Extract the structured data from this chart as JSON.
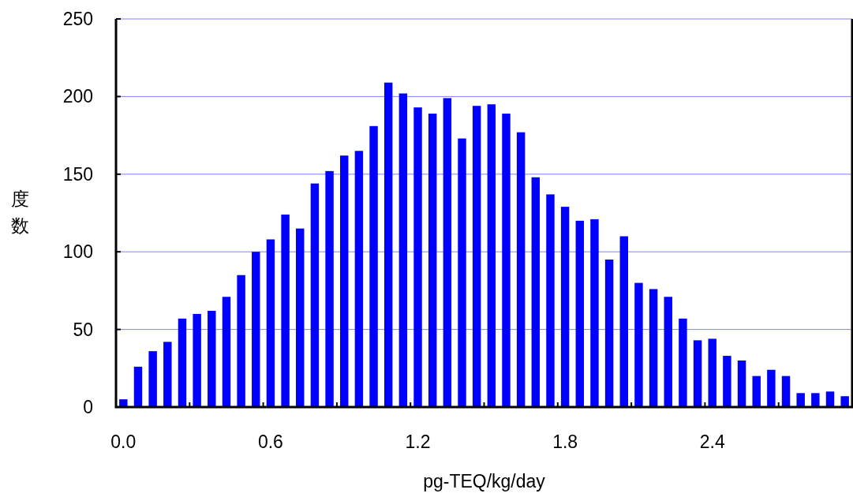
{
  "chart_data": {
    "type": "bar",
    "xlabel": "pg-TEQ/kg/day",
    "ylabel": "度数",
    "categories": [
      "0.0",
      null,
      null,
      null,
      null,
      null,
      null,
      null,
      null,
      null,
      "0.6",
      null,
      null,
      null,
      null,
      null,
      null,
      null,
      null,
      null,
      "1.2",
      null,
      null,
      null,
      null,
      null,
      null,
      null,
      null,
      null,
      "1.8",
      null,
      null,
      null,
      null,
      null,
      null,
      null,
      null,
      null,
      "2.4",
      null,
      null,
      null,
      null,
      null,
      null,
      null,
      null,
      null
    ],
    "values": [
      5,
      26,
      36,
      42,
      57,
      60,
      62,
      71,
      85,
      100,
      108,
      124,
      115,
      144,
      152,
      162,
      165,
      181,
      209,
      202,
      193,
      189,
      199,
      173,
      194,
      195,
      189,
      177,
      148,
      137,
      129,
      120,
      121,
      95,
      110,
      80,
      76,
      71,
      57,
      43,
      44,
      33,
      30,
      20,
      24,
      20,
      9,
      9,
      10,
      7
    ],
    "color": "#0000ff",
    "ylim": [
      0,
      250
    ],
    "yticks": [
      0,
      50,
      100,
      150,
      200,
      250
    ],
    "grid": "y"
  }
}
